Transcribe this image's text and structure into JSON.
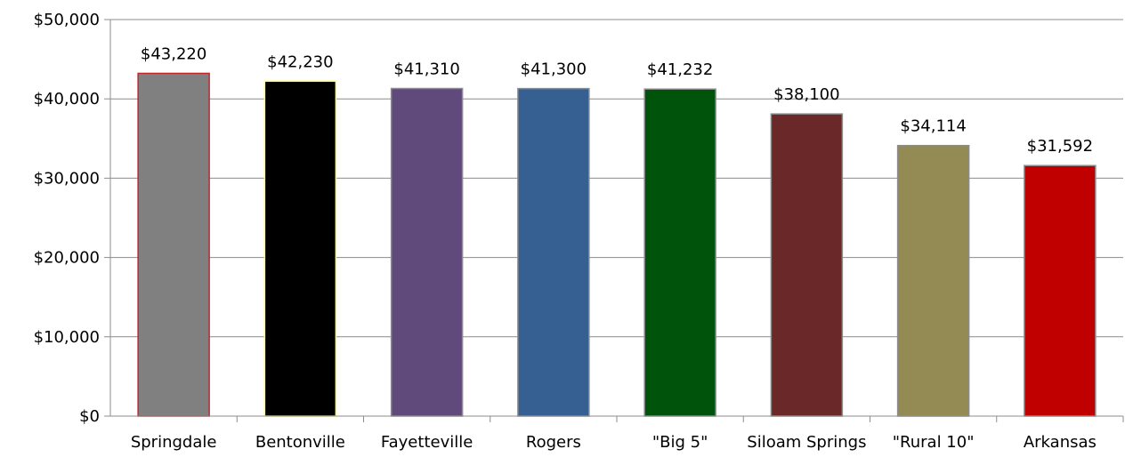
{
  "chart_data": {
    "type": "bar",
    "title": "",
    "xlabel": "",
    "ylabel": "",
    "ylim": [
      0,
      50000
    ],
    "yticks": [
      0,
      10000,
      20000,
      30000,
      40000,
      50000
    ],
    "ytick_labels": [
      "$0",
      "$10,000",
      "$20,000",
      "$30,000",
      "$40,000",
      "$50,000"
    ],
    "grid": true,
    "legend": "none",
    "categories": [
      "Springdale",
      "Bentonville",
      "Fayetteville",
      "Rogers",
      "\"Big 5\"",
      "Siloam Springs",
      "\"Rural 10\"",
      "Arkansas"
    ],
    "values": [
      43220,
      42230,
      41310,
      41300,
      41232,
      38100,
      34114,
      31592
    ],
    "data_labels": [
      "$43,220",
      "$42,230",
      "$41,310",
      "$41,300",
      "$41,232",
      "$38,100",
      "$34,114",
      "$31,592"
    ],
    "bar_colors": [
      "#808080",
      "#000000",
      "#604a7b",
      "#376092",
      "#00530a",
      "#6b2828",
      "#948a54",
      "#c00000"
    ],
    "bar_outlines": [
      "#c0272d",
      "#ffff66",
      "#8c8c8c",
      "#8c8c8c",
      "#8c8c8c",
      "#8c8c8c",
      "#8c8c8c",
      "#8c8c8c"
    ]
  }
}
